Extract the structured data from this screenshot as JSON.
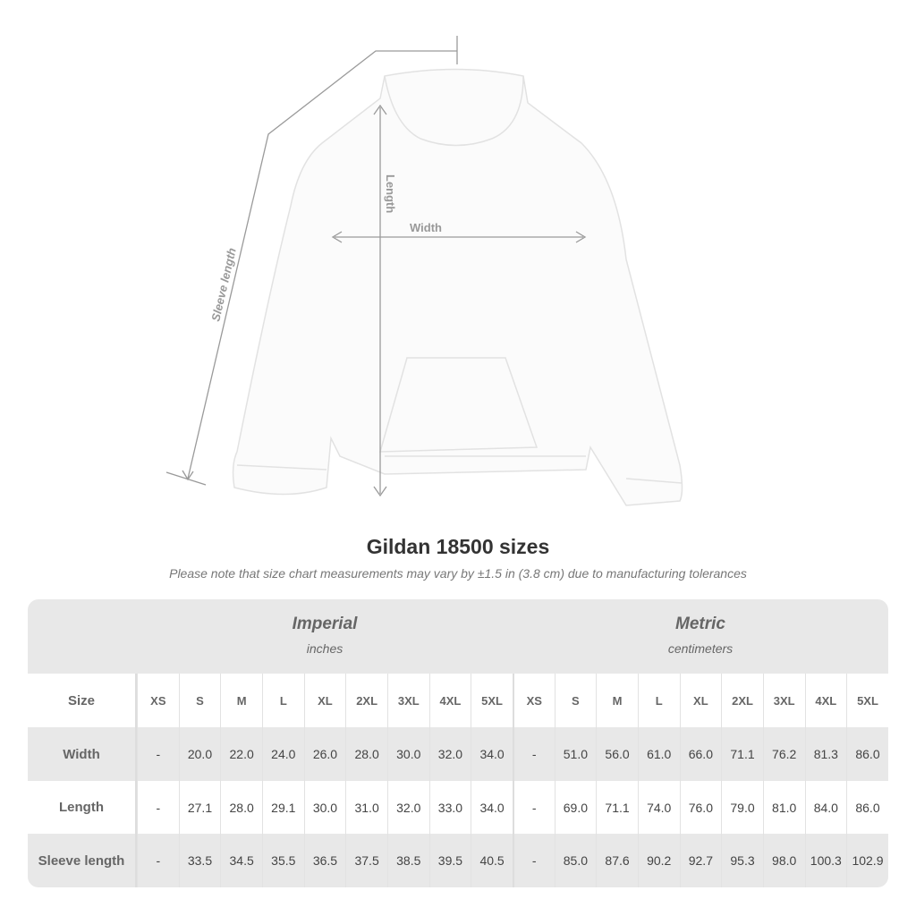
{
  "diagram": {
    "labels": {
      "sleeve": "Sleeve length",
      "length": "Length",
      "width": "Width"
    },
    "garment_color": "#fbfbfb",
    "line_color": "#9a9a9a"
  },
  "title": "Gildan 18500 sizes",
  "note": "Please note that size chart measurements may vary by ±1.5 in (3.8 cm) due to manufacturing tolerances",
  "table": {
    "imperial": {
      "name": "Imperial",
      "unit": "inches"
    },
    "metric": {
      "name": "Metric",
      "unit": "centimeters"
    },
    "size_label": "Size",
    "sizes": [
      "XS",
      "S",
      "M",
      "L",
      "XL",
      "2XL",
      "3XL",
      "4XL",
      "5XL"
    ],
    "rows": [
      {
        "label": "Width",
        "imperial": [
          "-",
          "20.0",
          "22.0",
          "24.0",
          "26.0",
          "28.0",
          "30.0",
          "32.0",
          "34.0"
        ],
        "metric": [
          "-",
          "51.0",
          "56.0",
          "61.0",
          "66.0",
          "71.1",
          "76.2",
          "81.3",
          "86.0"
        ]
      },
      {
        "label": "Length",
        "imperial": [
          "-",
          "27.1",
          "28.0",
          "29.1",
          "30.0",
          "31.0",
          "32.0",
          "33.0",
          "34.0"
        ],
        "metric": [
          "-",
          "69.0",
          "71.1",
          "74.0",
          "76.0",
          "79.0",
          "81.0",
          "84.0",
          "86.0"
        ]
      },
      {
        "label": "Sleeve length",
        "imperial": [
          "-",
          "33.5",
          "34.5",
          "35.5",
          "36.5",
          "37.5",
          "38.5",
          "39.5",
          "40.5"
        ],
        "metric": [
          "-",
          "85.0",
          "87.6",
          "90.2",
          "92.7",
          "95.3",
          "98.0",
          "100.3",
          "102.9"
        ]
      }
    ]
  }
}
